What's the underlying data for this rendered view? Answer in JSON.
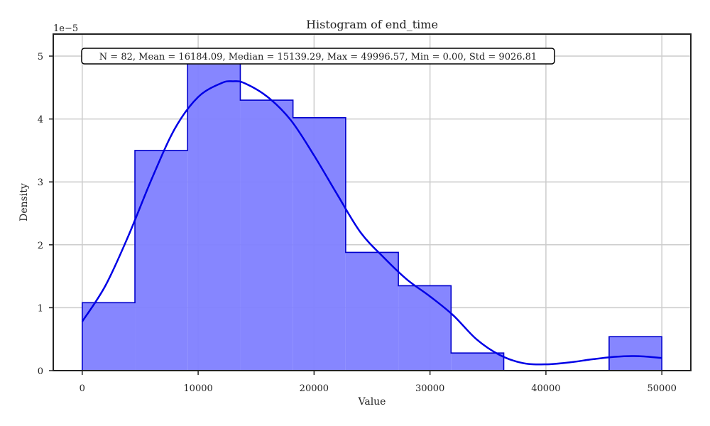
{
  "chart_data": {
    "type": "bar",
    "title": "Histogram of end_time",
    "xlabel": "Value",
    "ylabel": "Density",
    "y_multiplier_label": "1e−5",
    "xlim": [
      -2500,
      52500
    ],
    "ylim": [
      0,
      5.35
    ],
    "x_ticks": [
      0,
      10000,
      20000,
      30000,
      40000,
      50000
    ],
    "y_ticks": [
      0,
      1,
      2,
      3,
      4,
      5
    ],
    "grid": true,
    "bins": [
      {
        "x0": 0,
        "x1": 4545.1,
        "value": 1.08
      },
      {
        "x0": 4545.1,
        "x1": 9090.3,
        "value": 3.5
      },
      {
        "x0": 9090.3,
        "x1": 13635.4,
        "value": 4.9
      },
      {
        "x0": 13635.4,
        "x1": 18180.6,
        "value": 4.3
      },
      {
        "x0": 18180.6,
        "x1": 22725.7,
        "value": 4.02
      },
      {
        "x0": 22725.7,
        "x1": 27270.9,
        "value": 1.88
      },
      {
        "x0": 27270.9,
        "x1": 31816.0,
        "value": 1.35
      },
      {
        "x0": 31816.0,
        "x1": 36361.1,
        "value": 0.28
      },
      {
        "x0": 36361.1,
        "x1": 40906.3,
        "value": 0
      },
      {
        "x0": 40906.3,
        "x1": 45451.4,
        "value": 0
      },
      {
        "x0": 45451.4,
        "x1": 49996.6,
        "value": 0.54
      }
    ],
    "kde": {
      "x": [
        0,
        2000,
        4000,
        6000,
        8000,
        10000,
        12000,
        13000,
        14000,
        16000,
        18000,
        20000,
        22000,
        24000,
        26000,
        28000,
        30000,
        32000,
        34000,
        36000,
        38000,
        40000,
        42000,
        44000,
        46000,
        48000,
        50000
      ],
      "y": [
        0.78,
        1.35,
        2.15,
        3.05,
        3.85,
        4.35,
        4.57,
        4.6,
        4.57,
        4.35,
        3.98,
        3.42,
        2.8,
        2.2,
        1.8,
        1.45,
        1.18,
        0.88,
        0.5,
        0.25,
        0.12,
        0.1,
        0.13,
        0.18,
        0.22,
        0.23,
        0.2
      ]
    },
    "stats_box": "N = 82, Mean = 16184.09, Median = 15139.29, Max = 49996.57, Min = 0.00, Std = 9026.81",
    "colors": {
      "bar_fill": "#8080ff",
      "bar_edge": "#0000cc",
      "kde_line": "#0000e6",
      "grid": "#cccccc",
      "axis": "#222222"
    }
  }
}
